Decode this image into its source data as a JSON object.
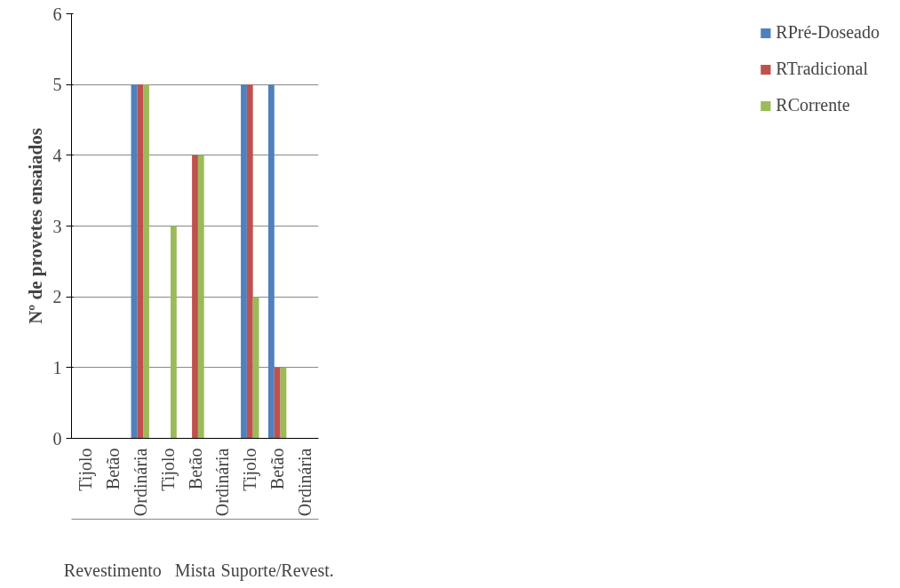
{
  "chart_data": {
    "type": "bar",
    "ylabel": "Nº de provetes ensaiados",
    "categories": [
      "Tijolo",
      "Betão",
      "Ordinária",
      "Tijolo",
      "Betão",
      "Ordinária",
      "Tijolo",
      "Betão",
      "Ordinária"
    ],
    "annotations": [
      "Revestimento",
      "Mista",
      "Suporte/Revest."
    ],
    "series": [
      {
        "name": "RPré-Doseado",
        "color": "#4f81bd",
        "values": [
          0,
          0,
          5,
          0,
          0,
          0,
          5,
          5,
          0
        ]
      },
      {
        "name": "RTradicional",
        "color": "#c0504d",
        "values": [
          0,
          0,
          5,
          0,
          4,
          0,
          5,
          1,
          0
        ]
      },
      {
        "name": "RCorrente",
        "color": "#9bbb59",
        "values": [
          0,
          0,
          5,
          3,
          4,
          0,
          2,
          1,
          0
        ]
      }
    ],
    "ylim": [
      0,
      6
    ],
    "yticks": [
      0,
      1,
      2,
      3,
      4,
      5,
      6
    ],
    "grid": "y",
    "legend": "right"
  }
}
